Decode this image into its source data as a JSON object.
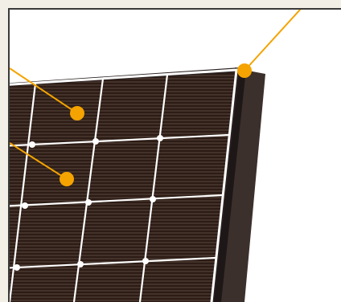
{
  "figure": {
    "subject": "solar-panel-closeup",
    "colors": {
      "background": "#f2efe6",
      "canvas": "#ffffff",
      "border": "#3a3a3a",
      "cell": "#2c1c15",
      "cell_line": "#6a5a50",
      "grid": "#ffffff",
      "frame_dark": "#2a2020",
      "frame_side": "#3b302c",
      "callout": "#f4a300"
    },
    "callouts": [
      {
        "name": "frame-corner-callout"
      },
      {
        "name": "upper-cell-callout"
      },
      {
        "name": "lower-cell-callout"
      }
    ]
  }
}
